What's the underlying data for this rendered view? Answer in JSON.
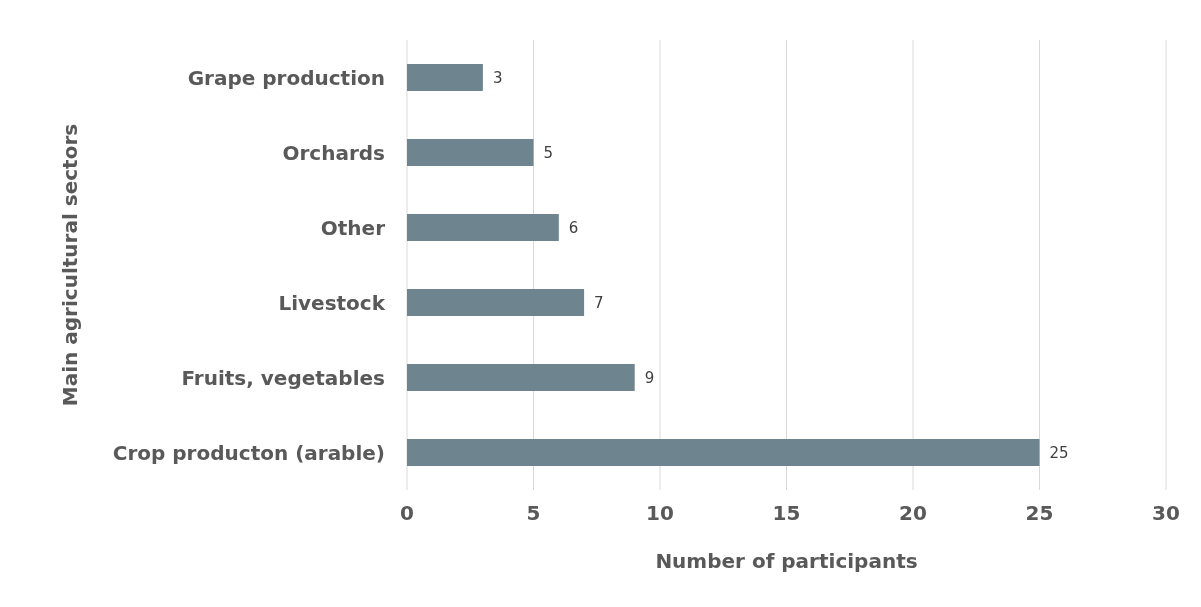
{
  "chart_data": {
    "type": "bar",
    "orientation": "horizontal",
    "categories": [
      "Grape production",
      "Orchards",
      "Other",
      "Livestock",
      "Fruits, vegetables",
      "Crop producton (arable)"
    ],
    "values": [
      3,
      5,
      6,
      7,
      9,
      25
    ],
    "color": "#6e848f",
    "xlim": [
      0,
      30
    ],
    "xticks": [
      0,
      5,
      10,
      15,
      20,
      25,
      30
    ],
    "grid": "x",
    "data_labels": true,
    "xlabel": "Number of participants",
    "ylabel": "Main agricultural sectors"
  }
}
